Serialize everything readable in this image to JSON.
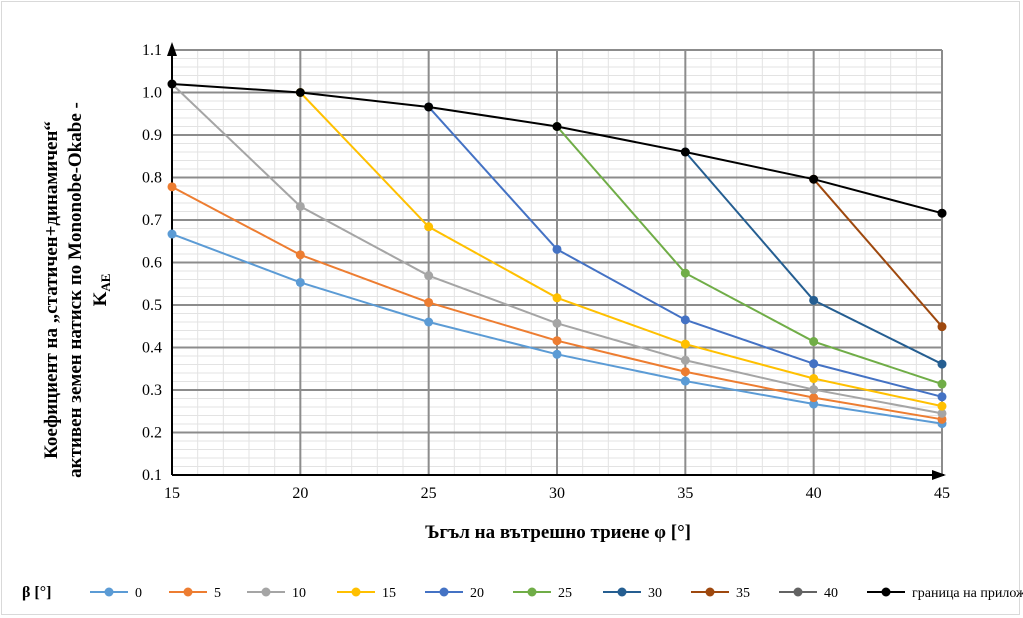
{
  "chart_data": {
    "type": "line",
    "xlabel": "Ъгъл на вътрешно триене φ [°]",
    "ylabel_lines": [
      "Коефициент на „статичен+динамичен“",
      "активен земен натиск по Mononobe-Okabe -",
      "K",
      "AE"
    ],
    "xlim": [
      15,
      45
    ],
    "ylim": [
      0.1,
      1.1
    ],
    "x_ticks": [
      "15",
      "20",
      "25",
      "30",
      "35",
      "40",
      "45"
    ],
    "y_ticks": [
      "0.1",
      "0.2",
      "0.3",
      "0.4",
      "0.5",
      "0.6",
      "0.7",
      "0.8",
      "0.9",
      "1.0",
      "1.1"
    ],
    "grid": true,
    "legend_title": "β [°]",
    "legend_position": "bottom",
    "series": [
      {
        "name": "0",
        "color": "#5b9bd5",
        "x": [
          15,
          20,
          25,
          30,
          35,
          40,
          45
        ],
        "y": [
          0.667,
          0.553,
          0.46,
          0.384,
          0.321,
          0.267,
          0.221
        ]
      },
      {
        "name": "5",
        "color": "#ed7d31",
        "x": [
          15,
          20,
          25,
          30,
          35,
          40,
          45
        ],
        "y": [
          0.778,
          0.618,
          0.506,
          0.416,
          0.343,
          0.282,
          0.231
        ]
      },
      {
        "name": "10",
        "color": "#a5a5a5",
        "x": [
          15,
          20,
          25,
          30,
          35,
          40,
          45
        ],
        "y": [
          1.02,
          0.732,
          0.569,
          0.457,
          0.37,
          0.301,
          0.245
        ]
      },
      {
        "name": "15",
        "color": "#ffc000",
        "x": [
          20,
          25,
          30,
          35,
          40,
          45
        ],
        "y": [
          1.0,
          0.684,
          0.517,
          0.408,
          0.327,
          0.262
        ]
      },
      {
        "name": "20",
        "color": "#4472c4",
        "x": [
          25,
          30,
          35,
          40,
          45
        ],
        "y": [
          0.966,
          0.631,
          0.465,
          0.362,
          0.284
        ]
      },
      {
        "name": "25",
        "color": "#70ad47",
        "x": [
          30,
          35,
          40,
          45
        ],
        "y": [
          0.92,
          0.575,
          0.414,
          0.314
        ]
      },
      {
        "name": "30",
        "color": "#255e91",
        "x": [
          35,
          40,
          45
        ],
        "y": [
          0.86,
          0.511,
          0.361
        ]
      },
      {
        "name": "35",
        "color": "#9e480e",
        "x": [
          40,
          45
        ],
        "y": [
          0.796,
          0.449
        ]
      },
      {
        "name": "40",
        "color": "#636363",
        "x": [
          45
        ],
        "y": [
          0.716
        ]
      },
      {
        "name": "граница на приложимост",
        "color": "#000000",
        "x": [
          15,
          20,
          25,
          30,
          35,
          40,
          45
        ],
        "y": [
          1.02,
          1.0,
          0.966,
          0.92,
          0.86,
          0.796,
          0.716
        ]
      }
    ]
  }
}
